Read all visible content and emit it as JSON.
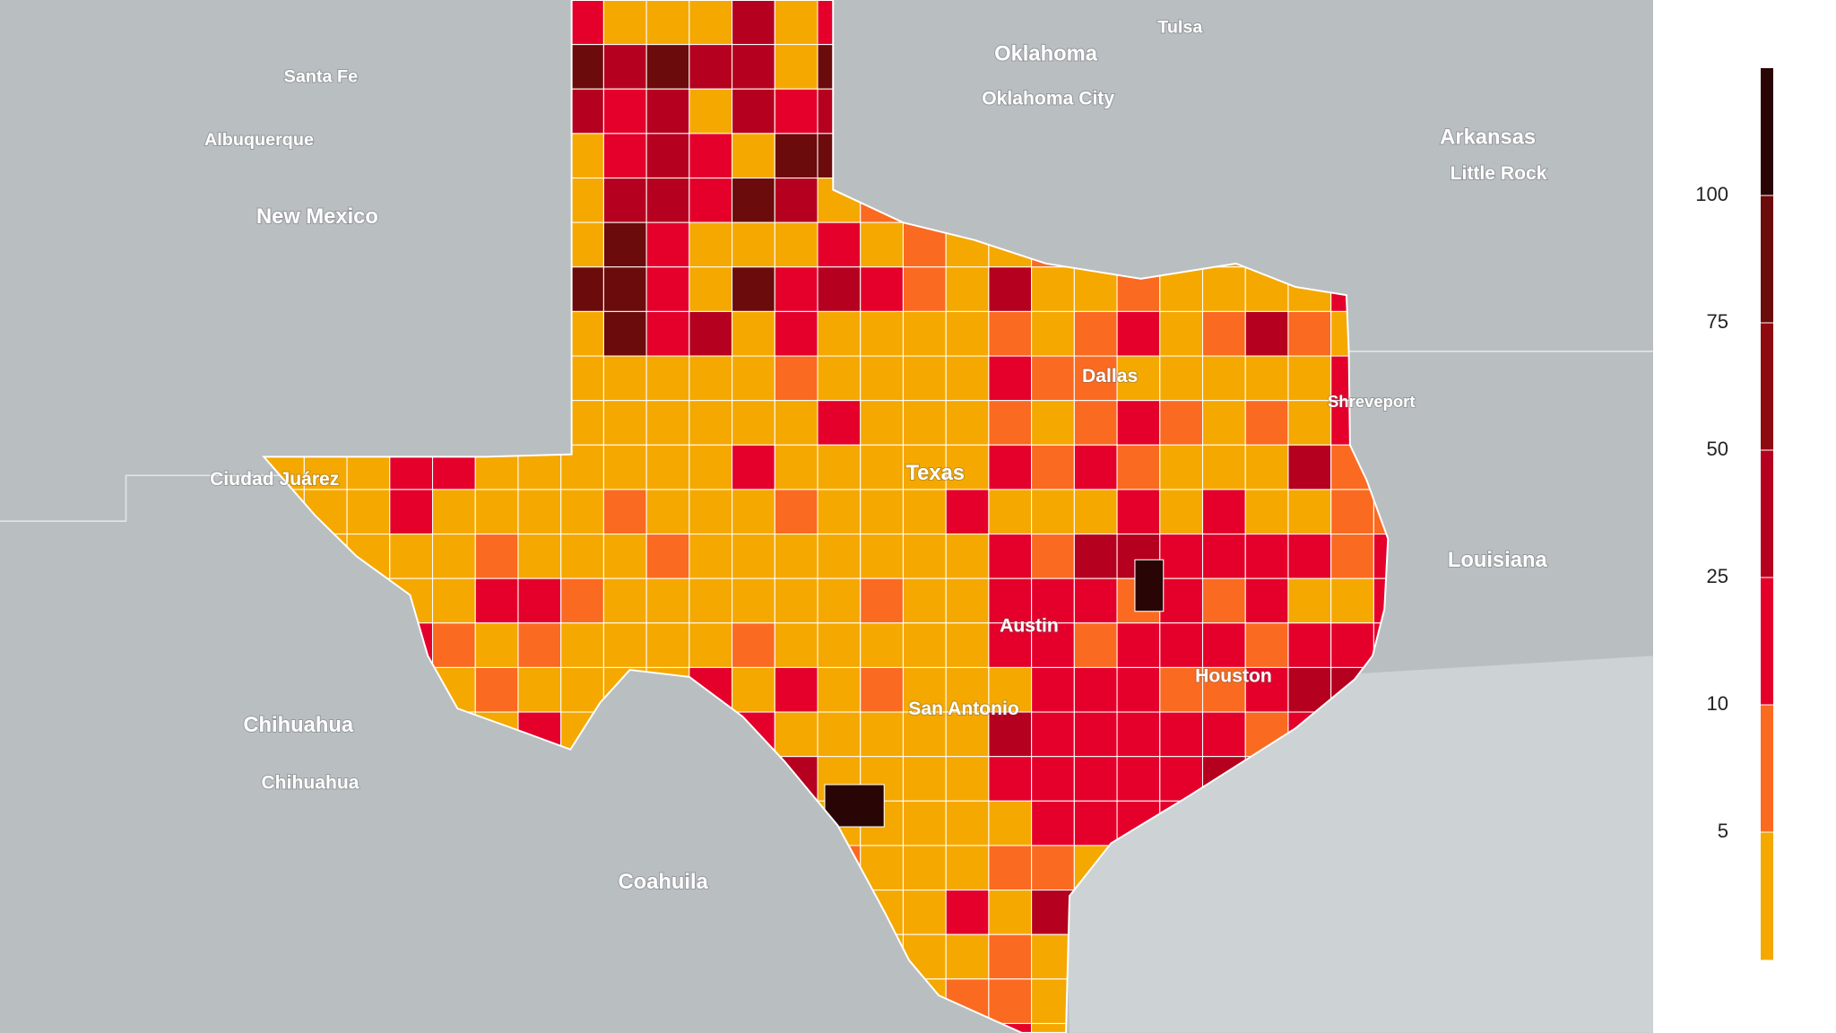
{
  "places": [
    "Tulsa",
    "Oklahoma",
    "Oklahoma City",
    "Santa Fe",
    "Albuquerque",
    "New Mexico",
    "Arkansas",
    "Little Rock",
    "Dallas",
    "Shreveport",
    "Texas",
    "Ciudad Juárez",
    "Louisiana",
    "Austin",
    "Houston",
    "San Antonio",
    "Chihuahua",
    "Chihuahua",
    "Coahuila"
  ],
  "legend": {
    "ticks": [
      5,
      10,
      25,
      50,
      75,
      100
    ],
    "colors": [
      "#f5a800",
      "#fb6a21",
      "#e4002b",
      "#b5001f",
      "#8f0a10",
      "#6b0b0b",
      "#2a0505"
    ]
  }
}
